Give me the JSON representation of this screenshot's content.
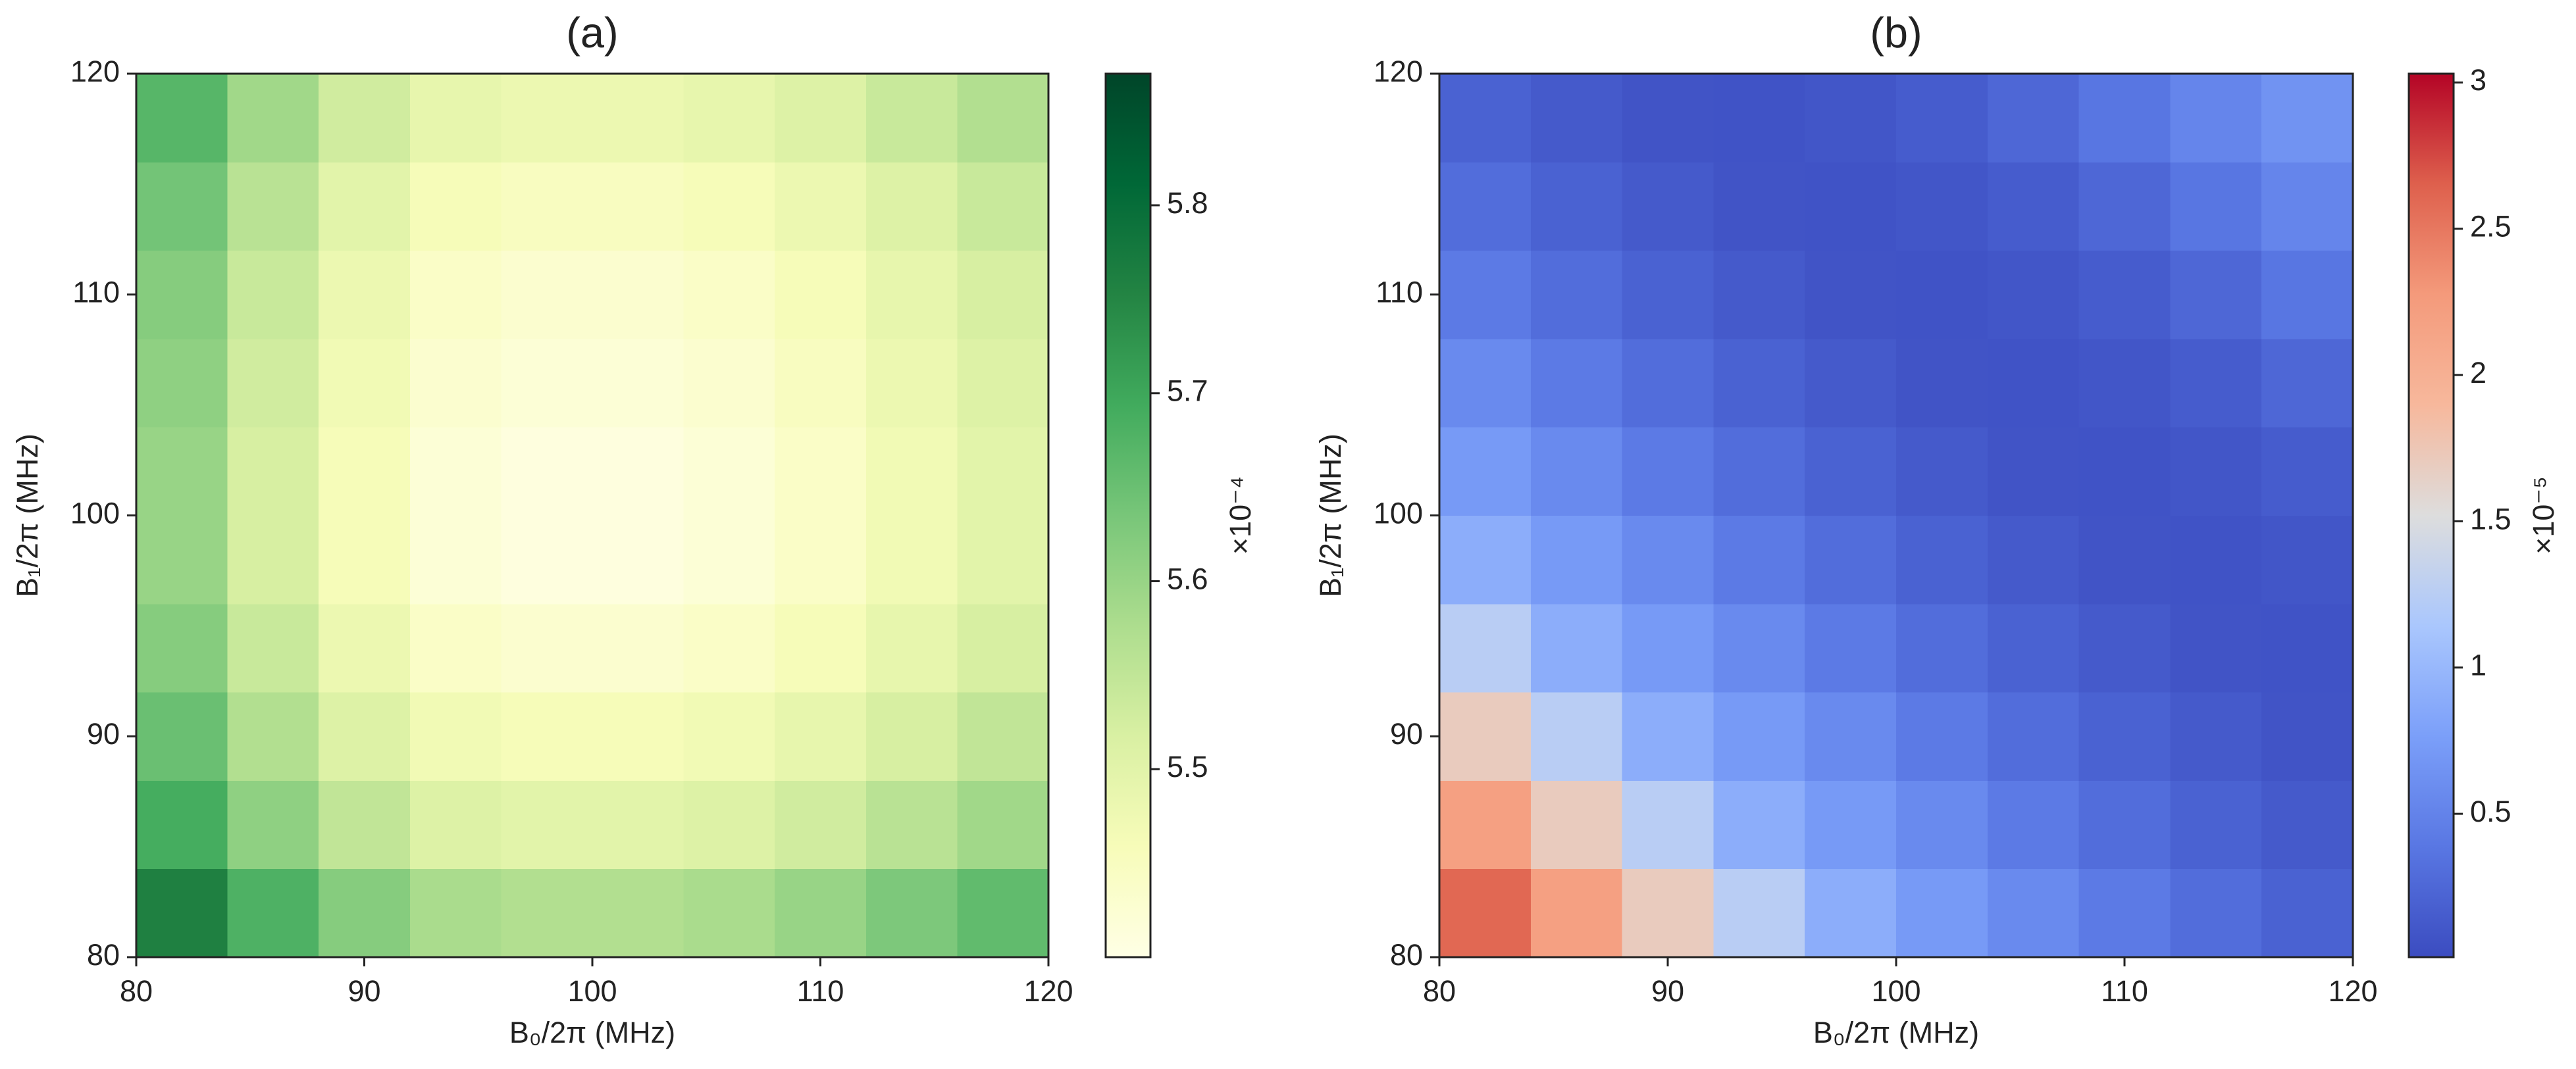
{
  "chart_data": [
    {
      "type": "heatmap",
      "title": "(a)",
      "xlabel": "B₀/2π (MHz)",
      "ylabel": "B₁/2π (MHz)",
      "x": [
        82,
        86,
        90,
        94,
        98,
        102,
        106,
        110,
        114,
        118
      ],
      "y": [
        82,
        86,
        90,
        94,
        98,
        102,
        106,
        110,
        114,
        118
      ],
      "z": [
        [
          5.76,
          5.68,
          5.62,
          5.58,
          5.57,
          5.57,
          5.58,
          5.6,
          5.63,
          5.66
        ],
        [
          5.69,
          5.61,
          5.55,
          5.51,
          5.5,
          5.5,
          5.51,
          5.53,
          5.56,
          5.59
        ],
        [
          5.65,
          5.57,
          5.51,
          5.47,
          5.46,
          5.46,
          5.47,
          5.49,
          5.52,
          5.55
        ],
        [
          5.62,
          5.54,
          5.48,
          5.44,
          5.43,
          5.43,
          5.44,
          5.46,
          5.49,
          5.52
        ],
        [
          5.6,
          5.52,
          5.46,
          5.42,
          5.41,
          5.41,
          5.42,
          5.44,
          5.47,
          5.5
        ],
        [
          5.6,
          5.52,
          5.46,
          5.42,
          5.41,
          5.41,
          5.42,
          5.44,
          5.47,
          5.5
        ],
        [
          5.61,
          5.53,
          5.47,
          5.43,
          5.42,
          5.42,
          5.43,
          5.45,
          5.48,
          5.51
        ],
        [
          5.62,
          5.54,
          5.48,
          5.44,
          5.43,
          5.43,
          5.44,
          5.46,
          5.49,
          5.52
        ],
        [
          5.64,
          5.56,
          5.5,
          5.46,
          5.45,
          5.45,
          5.46,
          5.48,
          5.51,
          5.54
        ],
        [
          5.67,
          5.59,
          5.53,
          5.49,
          5.48,
          5.48,
          5.49,
          5.51,
          5.54,
          5.57
        ]
      ],
      "xlim": [
        80,
        120
      ],
      "ylim": [
        80,
        120
      ],
      "xticks": [
        80,
        90,
        100,
        110,
        120
      ],
      "yticks": [
        80,
        90,
        100,
        110,
        120
      ],
      "colormap": "YlGn",
      "clim": [
        5.4,
        5.87
      ],
      "cticks": [
        5.5,
        5.6,
        5.7,
        5.8
      ],
      "colorbar_label": "×10⁻⁴"
    },
    {
      "type": "heatmap",
      "title": "(b)",
      "xlabel": "B₀/2π (MHz)",
      "ylabel": "B₁/2π (MHz)",
      "x": [
        82,
        86,
        90,
        94,
        98,
        102,
        106,
        110,
        114,
        118
      ],
      "y": [
        82,
        86,
        90,
        94,
        98,
        102,
        106,
        110,
        114,
        118
      ],
      "z": [
        [
          2.6,
          2.2,
          1.7,
          1.25,
          0.9,
          0.72,
          0.57,
          0.42,
          0.3,
          0.2
        ],
        [
          2.2,
          1.7,
          1.25,
          0.9,
          0.72,
          0.57,
          0.42,
          0.3,
          0.2,
          0.13
        ],
        [
          1.7,
          1.25,
          0.9,
          0.72,
          0.57,
          0.42,
          0.3,
          0.2,
          0.13,
          0.08
        ],
        [
          1.25,
          0.9,
          0.72,
          0.57,
          0.42,
          0.3,
          0.2,
          0.13,
          0.08,
          0.07
        ],
        [
          0.9,
          0.72,
          0.57,
          0.42,
          0.3,
          0.2,
          0.13,
          0.08,
          0.07,
          0.1
        ],
        [
          0.72,
          0.57,
          0.42,
          0.3,
          0.2,
          0.13,
          0.08,
          0.07,
          0.1,
          0.15
        ],
        [
          0.57,
          0.42,
          0.3,
          0.2,
          0.13,
          0.08,
          0.07,
          0.1,
          0.15,
          0.25
        ],
        [
          0.42,
          0.3,
          0.2,
          0.13,
          0.08,
          0.07,
          0.1,
          0.15,
          0.25,
          0.38
        ],
        [
          0.3,
          0.2,
          0.13,
          0.08,
          0.07,
          0.1,
          0.15,
          0.25,
          0.38,
          0.52
        ],
        [
          0.2,
          0.13,
          0.08,
          0.07,
          0.1,
          0.15,
          0.25,
          0.38,
          0.52,
          0.65
        ]
      ],
      "xlim": [
        80,
        120
      ],
      "ylim": [
        80,
        120
      ],
      "xticks": [
        80,
        90,
        100,
        110,
        120
      ],
      "yticks": [
        80,
        90,
        100,
        110,
        120
      ],
      "colormap": "coolwarm",
      "clim": [
        0.01,
        3.03
      ],
      "cticks": [
        0.5,
        1.0,
        1.5,
        2.0,
        2.5,
        3.0
      ],
      "colorbar_label": "×10⁻⁵"
    }
  ]
}
